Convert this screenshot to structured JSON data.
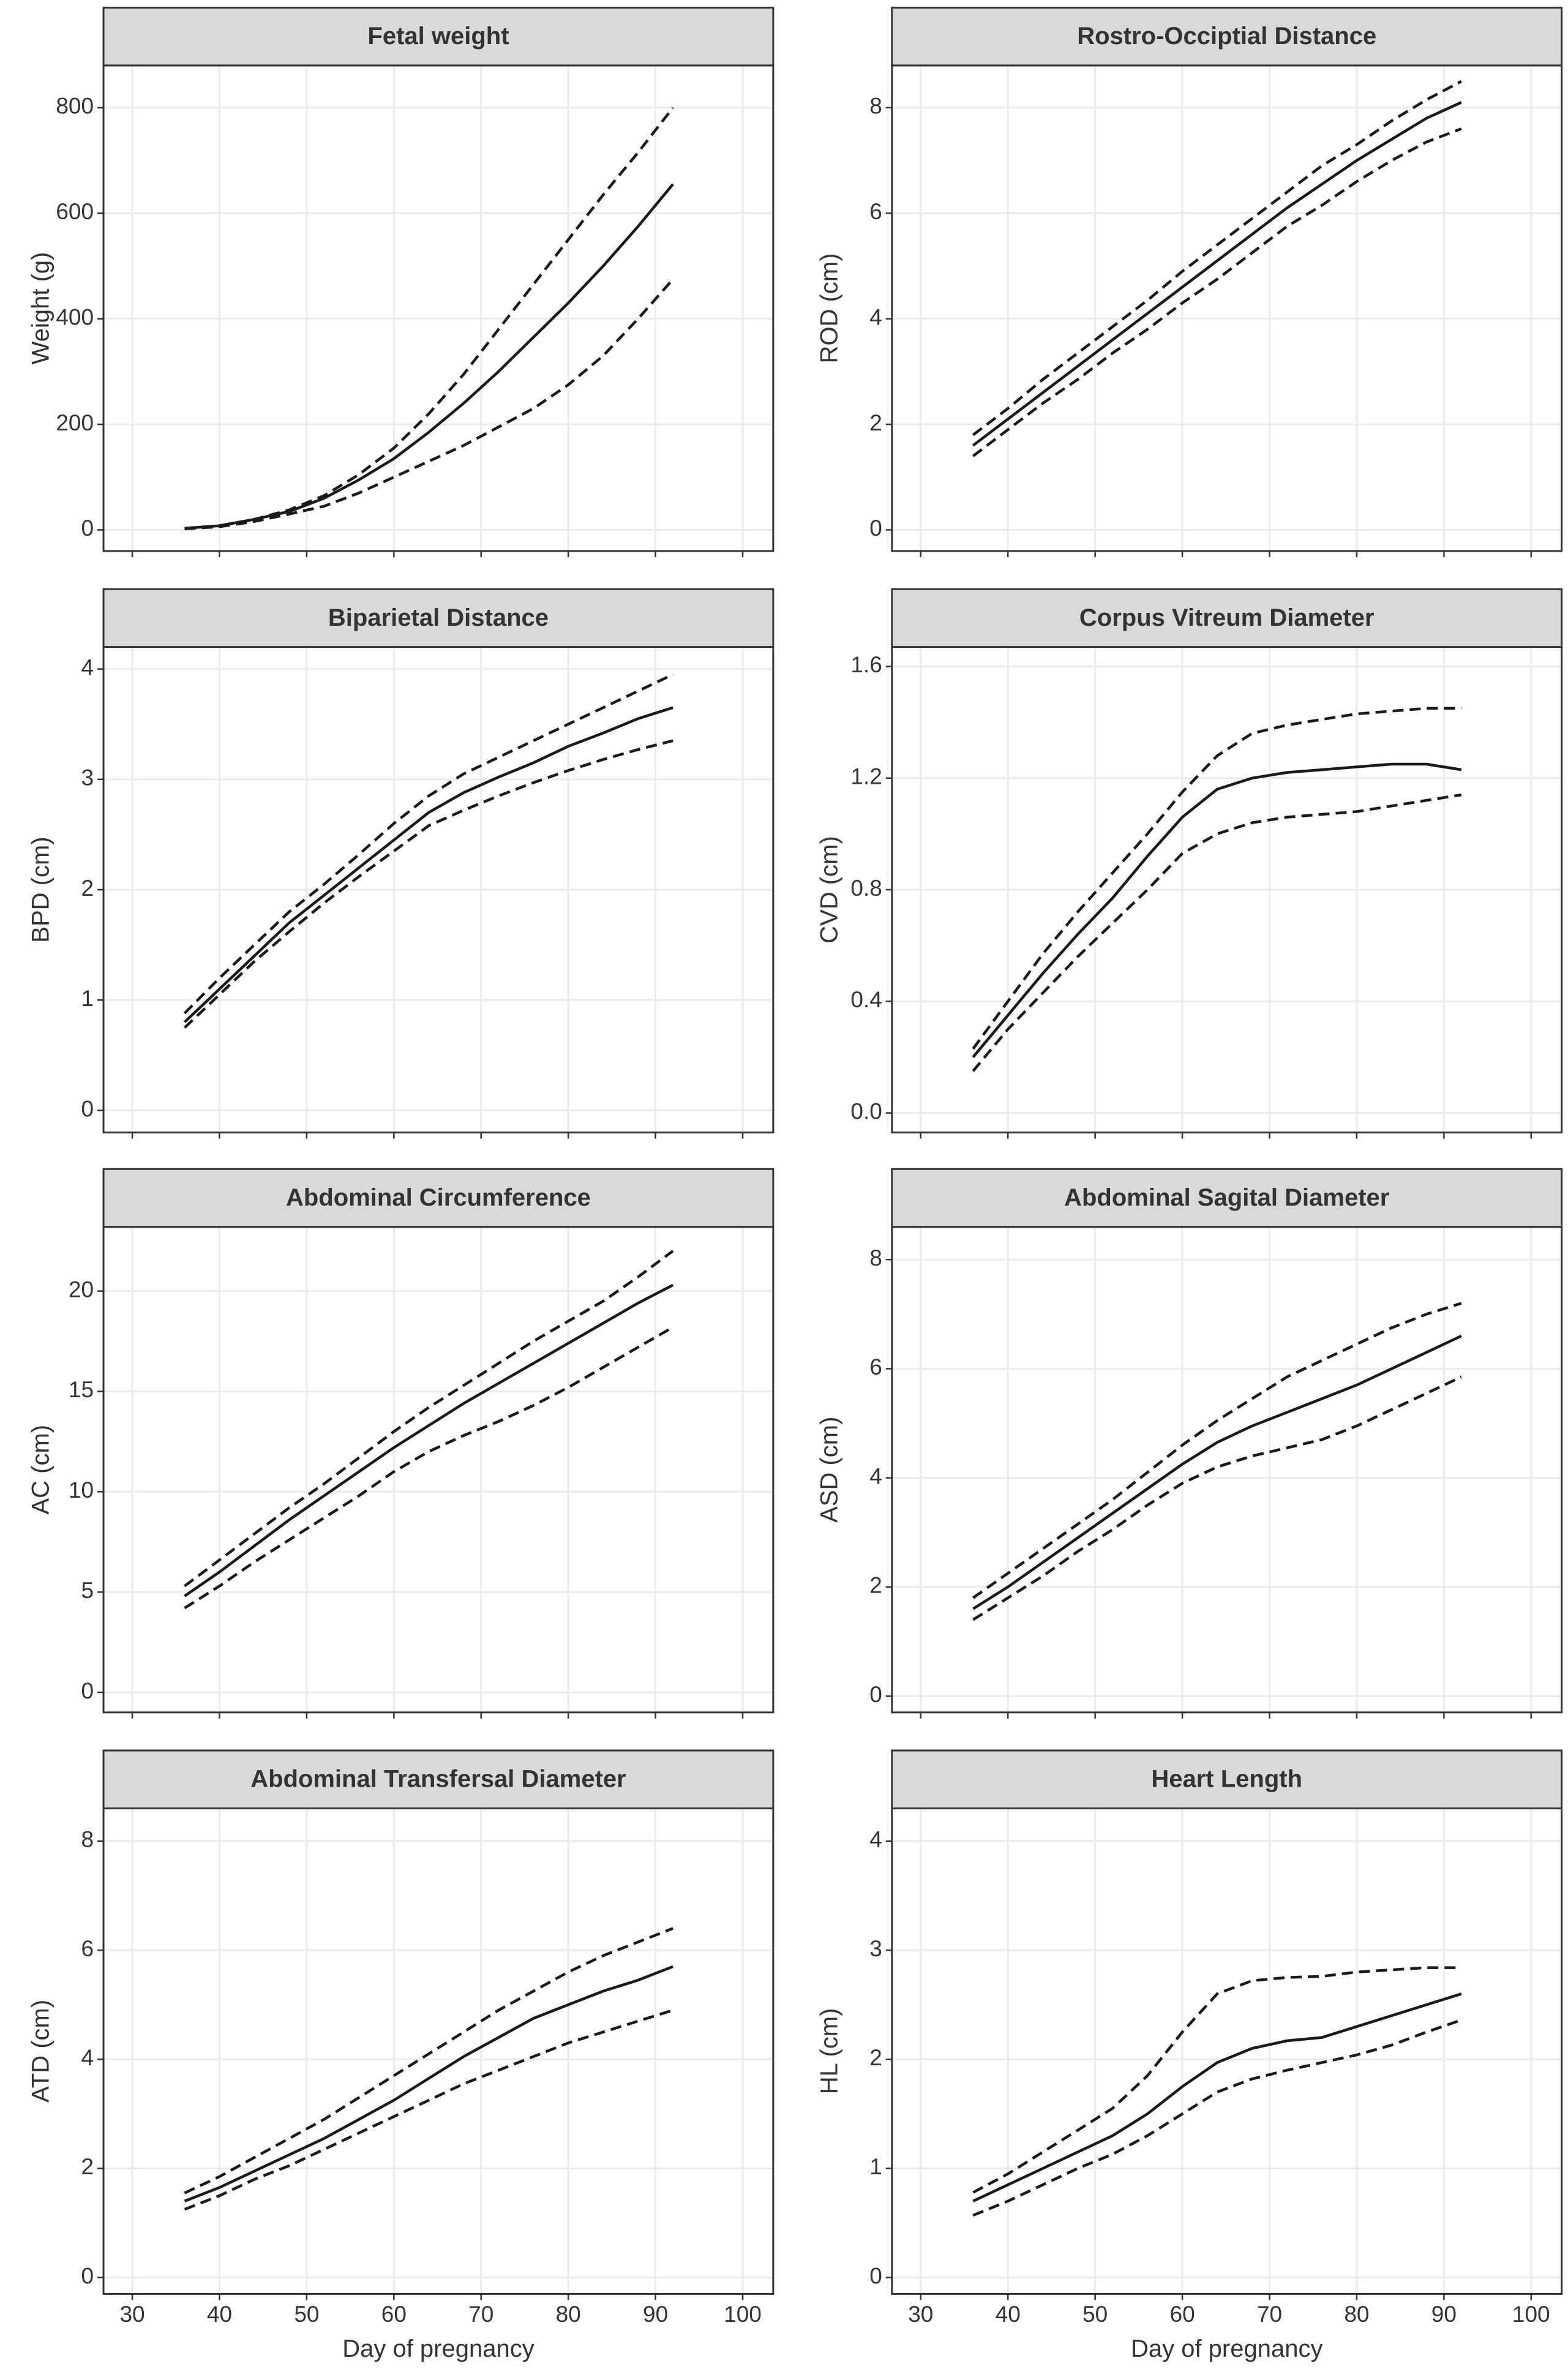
{
  "chart_data": [
    {
      "type": "line",
      "title": "Fetal weight",
      "ylabel": "Weight (g)",
      "x": [
        36,
        40,
        44,
        48,
        52,
        56,
        60,
        64,
        68,
        72,
        76,
        80,
        84,
        88,
        92
      ],
      "xlim": [
        26.7,
        103.5
      ],
      "xticks": [
        30,
        40,
        50,
        60,
        70,
        80,
        90,
        100
      ],
      "ylim": [
        -40,
        880
      ],
      "yticks": [
        0,
        200,
        400,
        600,
        800
      ],
      "grid": true,
      "series": [
        {
          "color": "#1a1a1a",
          "dash": false,
          "values": [
            3,
            8,
            20,
            35,
            60,
            95,
            135,
            185,
            240,
            300,
            365,
            430,
            500,
            575,
            655
          ]
        },
        {
          "color": "#1a1a1a",
          "dash": true,
          "values": [
            3,
            8,
            20,
            38,
            65,
            105,
            155,
            220,
            295,
            380,
            465,
            550,
            635,
            715,
            800
          ]
        },
        {
          "color": "#1a1a1a",
          "dash": true,
          "values": [
            2,
            6,
            16,
            30,
            45,
            70,
            100,
            130,
            160,
            195,
            230,
            275,
            330,
            400,
            475
          ]
        }
      ]
    },
    {
      "type": "line",
      "title": "Rostro-Occiptial Distance",
      "ylabel": "ROD (cm)",
      "x": [
        36,
        40,
        44,
        48,
        52,
        56,
        60,
        64,
        68,
        72,
        76,
        80,
        84,
        88,
        92
      ],
      "xlim": [
        26.7,
        103.5
      ],
      "xticks": [
        30,
        40,
        50,
        60,
        70,
        80,
        90,
        100
      ],
      "ylim": [
        -0.4,
        8.8
      ],
      "yticks": [
        0,
        2,
        4,
        6,
        8
      ],
      "grid": true,
      "series": [
        {
          "color": "#1a1a1a",
          "dash": false,
          "values": [
            1.6,
            2.1,
            2.6,
            3.1,
            3.6,
            4.1,
            4.6,
            5.1,
            5.6,
            6.1,
            6.55,
            7.0,
            7.4,
            7.8,
            8.1
          ]
        },
        {
          "color": "#1a1a1a",
          "dash": true,
          "values": [
            1.8,
            2.3,
            2.85,
            3.35,
            3.85,
            4.35,
            4.9,
            5.4,
            5.9,
            6.4,
            6.9,
            7.3,
            7.75,
            8.15,
            8.5
          ]
        },
        {
          "color": "#1a1a1a",
          "dash": true,
          "values": [
            1.4,
            1.9,
            2.4,
            2.85,
            3.35,
            3.8,
            4.3,
            4.75,
            5.25,
            5.75,
            6.15,
            6.6,
            7.0,
            7.35,
            7.6
          ]
        }
      ]
    },
    {
      "type": "line",
      "title": "Biparietal Distance",
      "ylabel": "BPD (cm)",
      "x": [
        36,
        40,
        44,
        48,
        52,
        56,
        60,
        64,
        68,
        72,
        76,
        80,
        84,
        88,
        92
      ],
      "xlim": [
        26.7,
        103.5
      ],
      "xticks": [
        30,
        40,
        50,
        60,
        70,
        80,
        90,
        100
      ],
      "ylim": [
        -0.2,
        4.2
      ],
      "yticks": [
        0,
        1,
        2,
        3,
        4
      ],
      "grid": true,
      "series": [
        {
          "color": "#1a1a1a",
          "dash": false,
          "values": [
            0.8,
            1.1,
            1.4,
            1.7,
            1.95,
            2.2,
            2.45,
            2.7,
            2.88,
            3.02,
            3.15,
            3.3,
            3.42,
            3.55,
            3.65
          ]
        },
        {
          "color": "#1a1a1a",
          "dash": true,
          "values": [
            0.88,
            1.2,
            1.5,
            1.8,
            2.05,
            2.32,
            2.6,
            2.85,
            3.05,
            3.2,
            3.35,
            3.5,
            3.65,
            3.8,
            3.95
          ]
        },
        {
          "color": "#1a1a1a",
          "dash": true,
          "values": [
            0.75,
            1.05,
            1.35,
            1.62,
            1.88,
            2.12,
            2.35,
            2.58,
            2.72,
            2.85,
            2.97,
            3.08,
            3.18,
            3.27,
            3.35
          ]
        }
      ]
    },
    {
      "type": "line",
      "title": "Corpus Vitreum Diameter",
      "ylabel": "CVD (cm)",
      "x": [
        36,
        40,
        44,
        48,
        52,
        56,
        60,
        64,
        68,
        72,
        76,
        80,
        84,
        88,
        92
      ],
      "xlim": [
        26.7,
        103.5
      ],
      "xticks": [
        30,
        40,
        50,
        60,
        70,
        80,
        90,
        100
      ],
      "ylim": [
        -0.07,
        1.67
      ],
      "yticks": [
        {
          "value": 0,
          "label": "0.0"
        },
        0.4,
        0.8,
        1.2,
        1.6
      ],
      "grid": true,
      "series": [
        {
          "color": "#1a1a1a",
          "dash": false,
          "values": [
            0.2,
            0.35,
            0.5,
            0.64,
            0.77,
            0.92,
            1.06,
            1.16,
            1.2,
            1.22,
            1.23,
            1.24,
            1.25,
            1.25,
            1.23
          ]
        },
        {
          "color": "#1a1a1a",
          "dash": true,
          "values": [
            0.23,
            0.4,
            0.57,
            0.72,
            0.86,
            1.0,
            1.15,
            1.28,
            1.36,
            1.39,
            1.41,
            1.43,
            1.44,
            1.45,
            1.45
          ]
        },
        {
          "color": "#1a1a1a",
          "dash": true,
          "values": [
            0.15,
            0.3,
            0.43,
            0.56,
            0.68,
            0.8,
            0.93,
            1.0,
            1.04,
            1.06,
            1.07,
            1.08,
            1.1,
            1.12,
            1.14
          ]
        }
      ]
    },
    {
      "type": "line",
      "title": "Abdominal Circumference",
      "ylabel": "AC (cm)",
      "x": [
        36,
        40,
        44,
        48,
        52,
        56,
        60,
        64,
        68,
        72,
        76,
        80,
        84,
        88,
        92
      ],
      "xlim": [
        26.7,
        103.5
      ],
      "xticks": [
        30,
        40,
        50,
        60,
        70,
        80,
        90,
        100
      ],
      "ylim": [
        -1,
        23.2
      ],
      "yticks": [
        0,
        5,
        10,
        15,
        20
      ],
      "grid": true,
      "series": [
        {
          "color": "#1a1a1a",
          "dash": false,
          "values": [
            4.8,
            6.0,
            7.3,
            8.6,
            9.8,
            11.0,
            12.2,
            13.3,
            14.4,
            15.4,
            16.4,
            17.4,
            18.4,
            19.4,
            20.3
          ]
        },
        {
          "color": "#1a1a1a",
          "dash": true,
          "values": [
            5.3,
            6.6,
            7.9,
            9.2,
            10.4,
            11.7,
            13.0,
            14.2,
            15.3,
            16.4,
            17.5,
            18.5,
            19.5,
            20.7,
            22.0
          ]
        },
        {
          "color": "#1a1a1a",
          "dash": true,
          "values": [
            4.2,
            5.3,
            6.5,
            7.6,
            8.7,
            9.8,
            11.0,
            12.0,
            12.8,
            13.5,
            14.3,
            15.2,
            16.2,
            17.2,
            18.2
          ]
        }
      ]
    },
    {
      "type": "line",
      "title": "Abdominal Sagital Diameter",
      "ylabel": "ASD (cm)",
      "x": [
        36,
        40,
        44,
        48,
        52,
        56,
        60,
        64,
        68,
        72,
        76,
        80,
        84,
        88,
        92
      ],
      "xlim": [
        26.7,
        103.5
      ],
      "xticks": [
        30,
        40,
        50,
        60,
        70,
        80,
        90,
        100
      ],
      "ylim": [
        -0.3,
        8.6
      ],
      "yticks": [
        0,
        2,
        4,
        6,
        8
      ],
      "grid": true,
      "series": [
        {
          "color": "#1a1a1a",
          "dash": false,
          "values": [
            1.6,
            2.0,
            2.45,
            2.9,
            3.35,
            3.8,
            4.25,
            4.65,
            4.95,
            5.2,
            5.45,
            5.7,
            6.0,
            6.3,
            6.6
          ]
        },
        {
          "color": "#1a1a1a",
          "dash": true,
          "values": [
            1.8,
            2.25,
            2.7,
            3.15,
            3.6,
            4.1,
            4.6,
            5.05,
            5.45,
            5.85,
            6.15,
            6.45,
            6.75,
            7.0,
            7.2
          ]
        },
        {
          "color": "#1a1a1a",
          "dash": true,
          "values": [
            1.4,
            1.8,
            2.2,
            2.65,
            3.05,
            3.5,
            3.9,
            4.2,
            4.4,
            4.55,
            4.7,
            4.95,
            5.25,
            5.55,
            5.85
          ]
        }
      ]
    },
    {
      "type": "line",
      "title": "Abdominal Transfersal Diameter",
      "ylabel": "ATD (cm)",
      "xlabel": "Day of pregnancy",
      "x": [
        36,
        40,
        44,
        48,
        52,
        56,
        60,
        64,
        68,
        72,
        76,
        80,
        84,
        88,
        92
      ],
      "xlim": [
        26.7,
        103.5
      ],
      "xticks": [
        30,
        40,
        50,
        60,
        70,
        80,
        90,
        100
      ],
      "ylim": [
        -0.3,
        8.6
      ],
      "yticks": [
        0,
        2,
        4,
        6,
        8
      ],
      "grid": true,
      "series": [
        {
          "color": "#1a1a1a",
          "dash": false,
          "values": [
            1.4,
            1.65,
            1.95,
            2.25,
            2.55,
            2.9,
            3.25,
            3.65,
            4.05,
            4.4,
            4.75,
            5.0,
            5.25,
            5.45,
            5.7
          ]
        },
        {
          "color": "#1a1a1a",
          "dash": true,
          "values": [
            1.55,
            1.85,
            2.2,
            2.55,
            2.9,
            3.3,
            3.7,
            4.1,
            4.5,
            4.9,
            5.25,
            5.6,
            5.9,
            6.15,
            6.4
          ]
        },
        {
          "color": "#1a1a1a",
          "dash": true,
          "values": [
            1.25,
            1.5,
            1.8,
            2.05,
            2.35,
            2.65,
            2.95,
            3.25,
            3.55,
            3.8,
            4.05,
            4.3,
            4.5,
            4.7,
            4.9
          ]
        }
      ]
    },
    {
      "type": "line",
      "title": "Heart Length",
      "ylabel": "HL (cm)",
      "xlabel": "Day of pregnancy",
      "x": [
        36,
        40,
        44,
        48,
        52,
        56,
        60,
        64,
        68,
        72,
        76,
        80,
        84,
        88,
        92
      ],
      "xlim": [
        26.7,
        103.5
      ],
      "xticks": [
        30,
        40,
        50,
        60,
        70,
        80,
        90,
        100
      ],
      "ylim": [
        -0.15,
        4.3
      ],
      "yticks": [
        0,
        1,
        2,
        3,
        4
      ],
      "grid": true,
      "series": [
        {
          "color": "#1a1a1a",
          "dash": false,
          "values": [
            0.7,
            0.85,
            1.0,
            1.15,
            1.3,
            1.5,
            1.75,
            1.97,
            2.1,
            2.17,
            2.2,
            2.3,
            2.4,
            2.5,
            2.6
          ]
        },
        {
          "color": "#1a1a1a",
          "dash": true,
          "values": [
            0.78,
            0.95,
            1.15,
            1.35,
            1.55,
            1.85,
            2.25,
            2.6,
            2.72,
            2.75,
            2.76,
            2.8,
            2.82,
            2.84,
            2.84
          ]
        },
        {
          "color": "#1a1a1a",
          "dash": true,
          "values": [
            0.57,
            0.7,
            0.85,
            1.0,
            1.13,
            1.3,
            1.5,
            1.7,
            1.82,
            1.9,
            1.97,
            2.04,
            2.13,
            2.25,
            2.36
          ]
        }
      ]
    }
  ]
}
